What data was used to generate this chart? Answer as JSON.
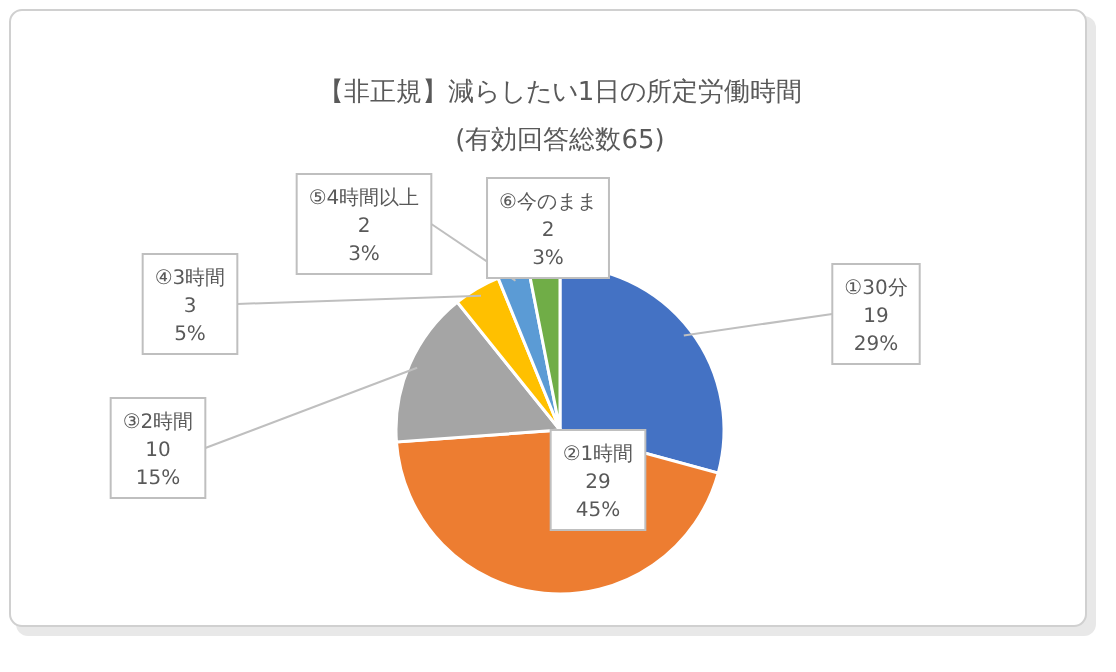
{
  "chart_data": {
    "type": "pie",
    "title": "【非正規】減らしたい1日の所定労働時間",
    "subtitle": "(有効回答総数65)",
    "categories": [
      "①30分",
      "②1時間",
      "③2時間",
      "④3時間",
      "⑤4時間以上",
      "⑥今のまま"
    ],
    "values": [
      19,
      29,
      10,
      3,
      2,
      2
    ],
    "value_labels": [
      "19\n29%",
      "29\n45%",
      "10\n15%",
      "3\n5%",
      "2\n3%",
      "2\n3%"
    ],
    "colors": [
      "#4472c4",
      "#ed7d31",
      "#a5a5a5",
      "#ffc000",
      "#5b9bd5",
      "#70ad47"
    ],
    "legend": false
  }
}
